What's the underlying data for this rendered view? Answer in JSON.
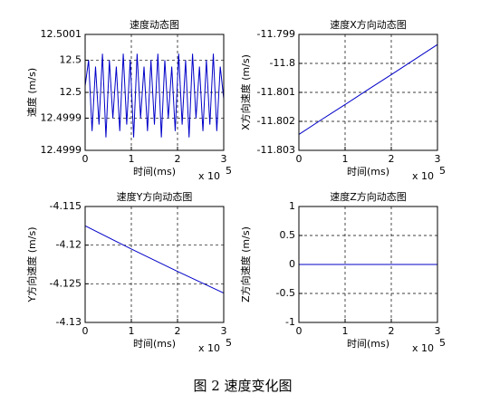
{
  "chart_data": [
    {
      "type": "line",
      "title": "速度动态图",
      "xlabel": "时间(ms)",
      "ylabel": "速度 (m/s)",
      "x_scale": {
        "base": "x 10",
        "exponent": "5"
      },
      "xlim": [
        0,
        3
      ],
      "xticks": [
        0,
        1,
        2,
        3
      ],
      "ylim": [
        12.49988,
        12.50006
      ],
      "yticks": [
        {
          "value": 12.49988,
          "label": "12.4999"
        },
        {
          "value": 12.49993,
          "label": "12.4999"
        },
        {
          "value": 12.49997,
          "label": "12.5"
        },
        {
          "value": 12.50002,
          "label": "12.5"
        },
        {
          "value": 12.50006,
          "label": "12.5001"
        }
      ],
      "grid": true,
      "color": "#0000c8",
      "x": [
        0,
        0.075,
        0.15,
        0.225,
        0.3,
        0.375,
        0.45,
        0.525,
        0.6,
        0.675,
        0.75,
        0.825,
        0.9,
        0.975,
        1.05,
        1.125,
        1.2,
        1.275,
        1.35,
        1.425,
        1.5,
        1.575,
        1.65,
        1.725,
        1.8,
        1.875,
        1.95,
        2.025,
        2.1,
        2.175,
        2.25,
        2.325,
        2.4,
        2.475,
        2.55,
        2.625,
        2.7,
        2.775,
        2.85,
        2.925,
        3
      ],
      "values": [
        12.49998,
        12.50002,
        12.49991,
        12.50001,
        12.49992,
        12.50003,
        12.4999,
        12.50002,
        12.49993,
        12.50001,
        12.49991,
        12.50003,
        12.49992,
        12.50002,
        12.4999,
        12.50003,
        12.49993,
        12.50001,
        12.49991,
        12.50002,
        12.49992,
        12.50003,
        12.4999,
        12.50002,
        12.49993,
        12.50001,
        12.49991,
        12.50003,
        12.49992,
        12.50002,
        12.4999,
        12.50003,
        12.49993,
        12.50001,
        12.49991,
        12.50002,
        12.49992,
        12.50003,
        12.49991,
        12.50001,
        12.49996
      ]
    },
    {
      "type": "line",
      "title": "速度X方向动态图",
      "xlabel": "时间(ms)",
      "ylabel": "X方向速度 (m/s)",
      "x_scale": {
        "base": "x 10",
        "exponent": "5"
      },
      "xlim": [
        0,
        3
      ],
      "xticks": [
        0,
        1,
        2,
        3
      ],
      "ylim": [
        -11.803,
        -11.799
      ],
      "yticks": [
        -11.803,
        -11.802,
        -11.801,
        -11.8,
        -11.799
      ],
      "grid": true,
      "color": "#0000c8",
      "x": [
        0,
        0.5,
        1,
        1.5,
        2,
        2.5,
        3
      ],
      "values": [
        -11.80245,
        -11.80193,
        -11.80142,
        -11.8009,
        -11.80039,
        -11.79987,
        -11.79935
      ]
    },
    {
      "type": "line",
      "title": "速度Y方向动态图",
      "xlabel": "时间(ms)",
      "ylabel": "Y方向速度 (m/s)",
      "x_scale": {
        "base": "x 10",
        "exponent": "5"
      },
      "xlim": [
        0,
        3
      ],
      "xticks": [
        0,
        1,
        2,
        3
      ],
      "ylim": [
        -4.13,
        -4.115
      ],
      "yticks": [
        -4.13,
        -4.125,
        -4.12,
        -4.115
      ],
      "grid": true,
      "color": "#0000c8",
      "x": [
        0,
        1,
        2,
        3
      ],
      "values": [
        -4.1175,
        -4.1205,
        -4.1234,
        -4.1262
      ]
    },
    {
      "type": "line",
      "title": "速度Z方向动态图",
      "xlabel": "时间(ms)",
      "ylabel": "Z方向速度 (m/s)",
      "x_scale": {
        "base": "x 10",
        "exponent": "5"
      },
      "xlim": [
        0,
        3
      ],
      "xticks": [
        0,
        1,
        2,
        3
      ],
      "ylim": [
        -1,
        1
      ],
      "yticks": [
        -1,
        -0.5,
        0,
        0.5,
        1
      ],
      "grid": true,
      "color": "#0000c8",
      "x": [
        0,
        3
      ],
      "values": [
        0,
        0
      ]
    }
  ],
  "caption": "图 2  速度变化图"
}
